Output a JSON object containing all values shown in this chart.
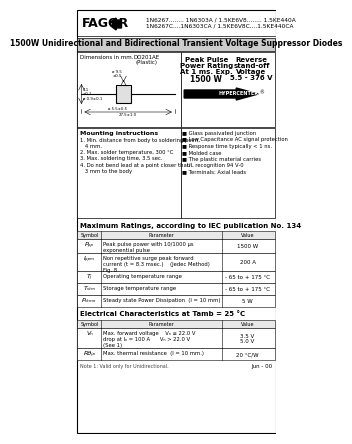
{
  "bg_color": "#ffffff",
  "header_part_line1": "1N6267........ 1N6303A / 1.5KE6V8........ 1.5KE440A",
  "header_part_line2": "1N6267C....1N6303CA / 1.5KE6V8C....1.5KE440CA",
  "title": "1500W Unidirectional and Bidirectional Transient Voltage Suppressor Diodes",
  "ratings_title": "Maximum Ratings, according to IEC publication No. 134",
  "elec_title": "Electrical Characteristics at Tamb = 25 °C",
  "footer_text": "Note 1: Valid only for Unidirectional.",
  "date_text": "Jun - 00",
  "mount_title": "Mounting instructions",
  "mount_items": [
    "1. Min. distance from body to soldering point,",
    "   4 mm.",
    "2. Max. solder temperature, 300 °C",
    "3. Max. soldering time, 3.5 sec.",
    "4. Do not bend lead at a point closer than",
    "   3 mm to the body"
  ],
  "feature_items": [
    "■ Glass passivated junction",
    "■ Low Capacitance AC signal protection",
    "■ Response time typically < 1 ns.",
    "■ Molded case",
    "■ The plastic material carries",
    "   UL recognition 94 V-0",
    "■ Terminals: Axial leads"
  ],
  "ratings_rows": [
    [
      "Pₚₚ",
      "Peak pulse power with 10/1000 μs\nexponential pulse",
      "1500 W"
    ],
    [
      "Iₚₚₘ",
      "Non repetitive surge peak forward\ncurrent (t = 8.3 msec.)    (Jedec Method)\nFig. 8",
      "200 A"
    ],
    [
      "Tⱼ",
      "Operating temperature range",
      "- 65 to + 175 °C"
    ],
    [
      "Tₛₜₘ",
      "Storage temperature range",
      "- 65 to + 175 °C"
    ],
    [
      "Pₛₜₘₙ",
      "Steady state Power Dissipation  (l = 10 mm)",
      "5 W"
    ]
  ],
  "elec_rows": [
    [
      "Vₙ",
      "Max. forward voltage    Vₙ ≤ 22.0 V\ndrop at Iₙ = 100 A      Vₙ > 22.0 V\n(See 1)",
      "3.5 V\n5.0 V"
    ],
    [
      "Rθⱼₐ",
      "Max. thermal resistance  (l = 10 mm.)",
      "20 °C/W"
    ]
  ]
}
